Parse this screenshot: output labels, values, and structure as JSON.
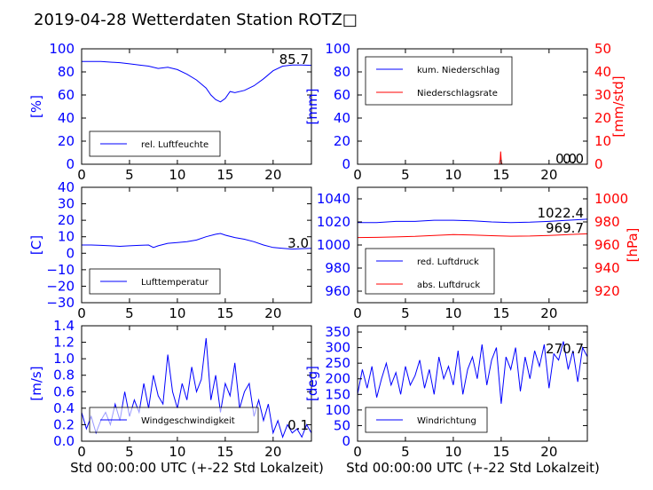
{
  "title": "2019-04-28 Wetterdaten Station ROTZ□",
  "xlabel": "Std 00:00:00 UTC (+-22 Std Lokalzeit)",
  "colors": {
    "left_axis": "#0000ff",
    "right_axis": "#ff0000",
    "primary_series": "#0000ff",
    "secondary_series": "#ff0000"
  },
  "panels": [
    {
      "id": "humidity",
      "ylabel": "[%]",
      "ylim": [
        0,
        100
      ],
      "yticks": [
        "0",
        "20",
        "40",
        "60",
        "80",
        "100"
      ],
      "xticks": [
        "0",
        "5",
        "10",
        "15",
        "20"
      ],
      "value_label": "85.7",
      "legend": [
        {
          "label": "rel. Luftfeuchte",
          "color": "#0000ff"
        }
      ]
    },
    {
      "id": "precipitation",
      "ylabel": "[mm]",
      "ylim": [
        0,
        100
      ],
      "yticks": [
        "0",
        "20",
        "40",
        "60",
        "80",
        "100"
      ],
      "ylabel2": "[mm/std]",
      "ylim2": [
        0,
        50
      ],
      "yticks2": [
        "0",
        "10",
        "20",
        "30",
        "40",
        "50"
      ],
      "xticks": [
        "0",
        "5",
        "10",
        "15",
        "20"
      ],
      "value_label": "0.0",
      "value_label2": "0.0",
      "legend": [
        {
          "label": "kum. Niederschlag",
          "color": "#0000ff"
        },
        {
          "label": "Niederschlagsrate",
          "color": "#ff0000"
        }
      ]
    },
    {
      "id": "temperature",
      "ylabel": "[C]",
      "ylim": [
        -30,
        40
      ],
      "yticks": [
        "−30",
        "−20",
        "−10",
        "0",
        "10",
        "20",
        "30",
        "40"
      ],
      "xticks": [
        "0",
        "5",
        "10",
        "15",
        "20"
      ],
      "value_label": "3.0",
      "legend": [
        {
          "label": "Lufttemperatur",
          "color": "#0000ff"
        }
      ]
    },
    {
      "id": "pressure",
      "ylabel": "[hPa]",
      "ylim": [
        950,
        1050
      ],
      "yticks": [
        "960",
        "980",
        "1000",
        "1020",
        "1040"
      ],
      "ylim2": [
        910,
        1010
      ],
      "yticks2": [
        "920",
        "940",
        "960",
        "980",
        "1000"
      ],
      "xticks": [
        "0",
        "5",
        "10",
        "15",
        "20"
      ],
      "value_label": "1022.4",
      "value_label2": "969.7",
      "legend": [
        {
          "label": "red. Luftdruck",
          "color": "#0000ff"
        },
        {
          "label": "abs. Luftdruck",
          "color": "#ff0000"
        }
      ]
    },
    {
      "id": "windspeed",
      "ylabel": "[m/s]",
      "ylim": [
        0,
        1.4
      ],
      "yticks": [
        "0.0",
        "0.2",
        "0.4",
        "0.6",
        "0.8",
        "1.0",
        "1.2",
        "1.4"
      ],
      "xticks": [
        "0",
        "5",
        "10",
        "15",
        "20"
      ],
      "value_label": "0.1",
      "legend": [
        {
          "label": "Windgeschwindigkeit",
          "color": "#0000ff"
        }
      ]
    },
    {
      "id": "winddirection",
      "ylabel": "[deg]",
      "ylim": [
        0,
        370
      ],
      "yticks": [
        "0",
        "50",
        "100",
        "150",
        "200",
        "250",
        "300",
        "350"
      ],
      "xticks": [
        "0",
        "5",
        "10",
        "15",
        "20"
      ],
      "value_label": "270.7",
      "legend": [
        {
          "label": "Windrichtung",
          "color": "#0000ff"
        }
      ]
    }
  ],
  "chart_data": [
    {
      "type": "line",
      "panel": "humidity",
      "xlim": [
        0,
        24
      ],
      "ylim": [
        0,
        100
      ],
      "series": [
        {
          "name": "rel. Luftfeuchte",
          "color": "#0000ff",
          "x": [
            0,
            1,
            2,
            3,
            4,
            5,
            6,
            7,
            8,
            9,
            10,
            11,
            12,
            13,
            13.5,
            14,
            14.5,
            15,
            15.5,
            16,
            17,
            18,
            19,
            20,
            21,
            22,
            23,
            24
          ],
          "y": [
            89,
            89,
            89,
            88.5,
            88,
            87,
            86,
            85,
            83,
            84,
            82,
            78,
            73,
            66,
            60,
            56,
            54,
            57,
            63,
            62,
            64,
            68,
            74,
            81,
            85,
            86,
            86,
            85.7
          ]
        }
      ]
    },
    {
      "type": "line",
      "panel": "precipitation",
      "xlim": [
        0,
        24
      ],
      "ylim": [
        0,
        100
      ],
      "series": [
        {
          "name": "kum. Niederschlag",
          "color": "#0000ff",
          "axis": "left",
          "x": [
            0,
            24
          ],
          "y": [
            0,
            0
          ]
        },
        {
          "name": "Niederschlagsrate",
          "color": "#ff0000",
          "axis": "right",
          "x": [
            0,
            14.8,
            14.9,
            14.95,
            15.0,
            15.05,
            15.1,
            24
          ],
          "y": [
            0,
            0,
            2,
            5.5,
            2,
            0.5,
            0,
            0
          ]
        }
      ]
    },
    {
      "type": "line",
      "panel": "temperature",
      "xlim": [
        0,
        24
      ],
      "ylim": [
        -30,
        40
      ],
      "series": [
        {
          "name": "Lufttemperatur",
          "color": "#0000ff",
          "x": [
            0,
            1,
            2,
            3,
            4,
            5,
            6,
            7,
            7.5,
            8,
            9,
            10,
            11,
            12,
            13,
            14,
            14.5,
            15,
            16,
            17,
            18,
            19,
            20,
            21,
            22,
            23,
            24
          ],
          "y": [
            5,
            5,
            4.8,
            4.5,
            4.2,
            4.5,
            4.8,
            5,
            3.5,
            4.5,
            6,
            6.5,
            7,
            8,
            10,
            11.5,
            12,
            11,
            9.5,
            8.5,
            7,
            5,
            3.5,
            3,
            2.5,
            2.8,
            3.0
          ]
        }
      ]
    },
    {
      "type": "line",
      "panel": "pressure",
      "xlim": [
        0,
        24
      ],
      "ylim": [
        950,
        1050
      ],
      "series": [
        {
          "name": "red. Luftdruck",
          "color": "#0000ff",
          "axis": "left",
          "x": [
            0,
            2,
            4,
            6,
            8,
            10,
            12,
            14,
            16,
            18,
            20,
            22,
            24
          ],
          "y": [
            1019.5,
            1019.5,
            1020.5,
            1020.5,
            1021.5,
            1021.5,
            1021,
            1020,
            1019.5,
            1019.8,
            1020.5,
            1021.5,
            1022.4
          ]
        },
        {
          "name": "abs. Luftdruck",
          "color": "#ff0000",
          "axis": "right",
          "x": [
            0,
            2,
            4,
            6,
            8,
            10,
            12,
            14,
            16,
            18,
            20,
            22,
            24
          ],
          "y": [
            966.5,
            966.6,
            967,
            967.5,
            968.3,
            969,
            968.6,
            968.1,
            967.6,
            967.8,
            968.3,
            969,
            969.7
          ]
        }
      ]
    },
    {
      "type": "line",
      "panel": "windspeed",
      "xlim": [
        0,
        24
      ],
      "ylim": [
        0,
        1.4
      ],
      "series": [
        {
          "name": "Windgeschwindigkeit",
          "color": "#0000ff",
          "x": [
            0,
            0.5,
            1,
            1.5,
            2,
            2.5,
            3,
            3.5,
            4,
            4.5,
            5,
            5.5,
            6,
            6.5,
            7,
            7.5,
            8,
            8.5,
            9,
            9.5,
            10,
            10.5,
            11,
            11.5,
            12,
            12.5,
            13,
            13.5,
            14,
            14.5,
            15,
            15.5,
            16,
            16.5,
            17,
            17.5,
            18,
            18.5,
            19,
            19.5,
            20,
            20.5,
            21,
            21.5,
            22,
            22.5,
            23,
            23.5,
            24
          ],
          "y": [
            0.35,
            0.15,
            0.3,
            0.1,
            0.25,
            0.35,
            0.2,
            0.45,
            0.25,
            0.6,
            0.3,
            0.5,
            0.35,
            0.7,
            0.4,
            0.8,
            0.55,
            0.45,
            1.05,
            0.6,
            0.4,
            0.7,
            0.5,
            0.9,
            0.6,
            0.75,
            1.25,
            0.5,
            0.8,
            0.35,
            0.7,
            0.55,
            0.95,
            0.4,
            0.6,
            0.7,
            0.3,
            0.5,
            0.25,
            0.45,
            0.1,
            0.25,
            0.05,
            0.2,
            0.1,
            0.15,
            0.05,
            0.2,
            0.1
          ]
        }
      ]
    },
    {
      "type": "line",
      "panel": "winddirection",
      "xlim": [
        0,
        24
      ],
      "ylim": [
        0,
        370
      ],
      "series": [
        {
          "name": "Windrichtung",
          "color": "#0000ff",
          "x": [
            0,
            0.5,
            1,
            1.5,
            2,
            2.5,
            3,
            3.5,
            4,
            4.5,
            5,
            5.5,
            6,
            6.5,
            7,
            7.5,
            8,
            8.5,
            9,
            9.5,
            10,
            10.5,
            11,
            11.5,
            12,
            12.5,
            13,
            13.5,
            14,
            14.5,
            15,
            15.5,
            16,
            16.5,
            17,
            17.5,
            18,
            18.5,
            19,
            19.5,
            20,
            20.5,
            21,
            21.5,
            22,
            22.5,
            23,
            23.5,
            24
          ],
          "y": [
            150,
            230,
            170,
            240,
            140,
            200,
            250,
            180,
            220,
            150,
            240,
            180,
            210,
            260,
            170,
            230,
            150,
            270,
            200,
            240,
            180,
            290,
            150,
            230,
            270,
            200,
            310,
            180,
            260,
            300,
            120,
            270,
            230,
            300,
            160,
            270,
            200,
            290,
            240,
            310,
            170,
            280,
            260,
            320,
            230,
            290,
            190,
            300,
            270.7
          ]
        }
      ]
    }
  ]
}
